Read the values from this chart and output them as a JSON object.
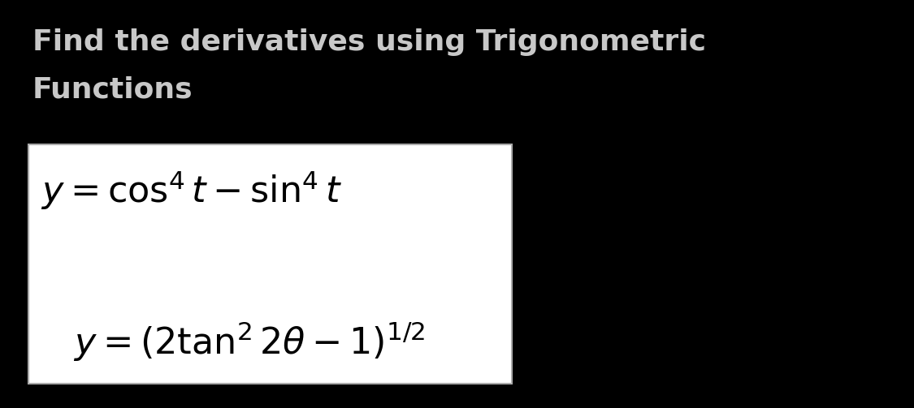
{
  "background_color": "#000000",
  "title_line1": "Find the derivatives using Trigonometric",
  "title_line2": "Functions",
  "title_color": "#c8c8c8",
  "title_fontsize": 26,
  "box_facecolor": "#ffffff",
  "box_edgecolor": "#aaaaaa",
  "eq1": "$y = \\cos^4 t - \\sin^4 t$",
  "eq2": "$y = \\left(2\\tan^2 2\\theta - 1\\right)^{1/2}$",
  "eq_color": "#000000",
  "eq1_fontsize": 32,
  "eq2_fontsize": 32,
  "fig_width": 11.25,
  "fig_height": 5.03,
  "dpi": 100
}
